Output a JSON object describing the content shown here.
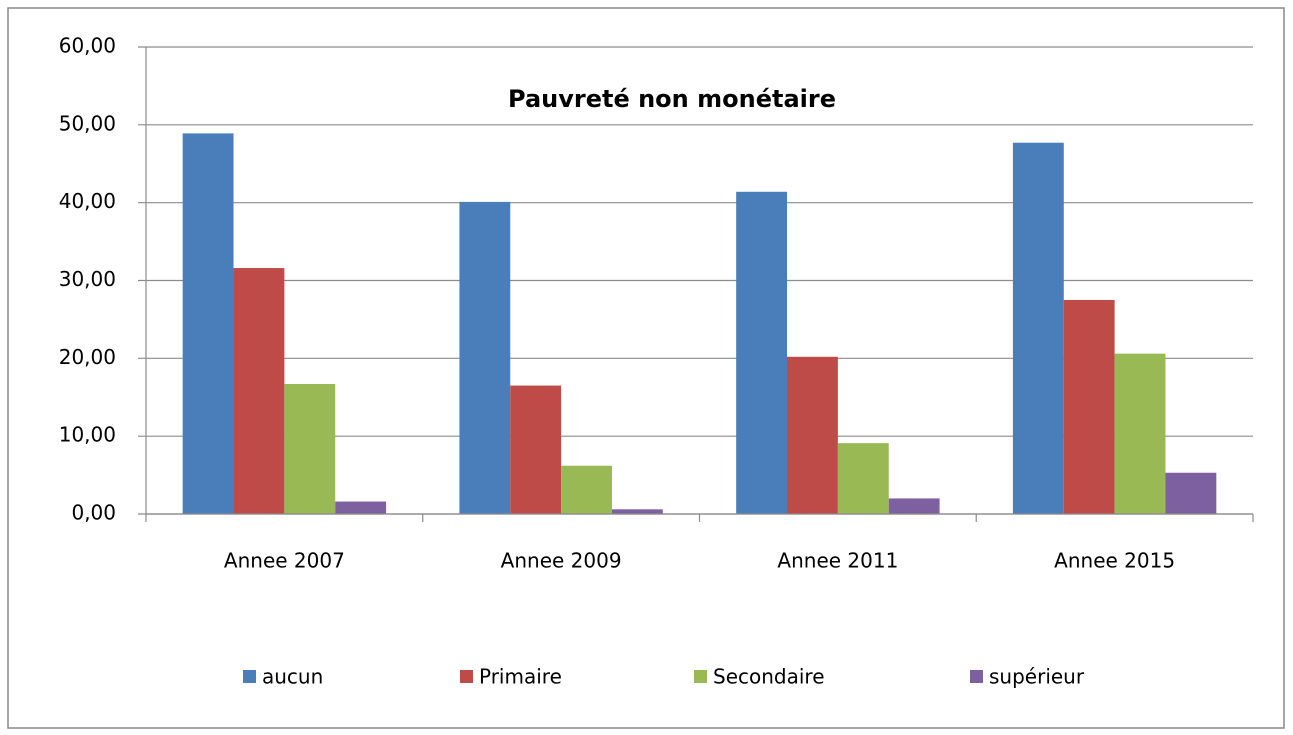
{
  "chart_data": {
    "type": "bar",
    "title": "Pauvreté non monétaire",
    "categories": [
      "Annee 2007",
      "Annee 2009",
      "Annee 2011",
      "Annee 2015"
    ],
    "series": [
      {
        "name": "aucun",
        "color": "#4a7ebb",
        "values": [
          48.9,
          40.1,
          41.4,
          47.7
        ]
      },
      {
        "name": "Primaire",
        "color": "#be4b48",
        "values": [
          31.6,
          16.5,
          20.2,
          27.5
        ]
      },
      {
        "name": "Secondaire",
        "color": "#98b954",
        "values": [
          16.7,
          6.2,
          9.1,
          20.6
        ]
      },
      {
        "name": "supérieur",
        "color": "#7d60a0",
        "values": [
          1.6,
          0.6,
          2.0,
          5.3
        ]
      }
    ],
    "ylim": [
      0,
      60
    ],
    "yticks": [
      {
        "value": 0,
        "label": "0,00"
      },
      {
        "value": 10,
        "label": "10,00"
      },
      {
        "value": 20,
        "label": "20,00"
      },
      {
        "value": 30,
        "label": "30,00"
      },
      {
        "value": 40,
        "label": "40,00"
      },
      {
        "value": 50,
        "label": "50,00"
      },
      {
        "value": 60,
        "label": "60,00"
      }
    ],
    "grid": true,
    "legend": "bottom"
  }
}
